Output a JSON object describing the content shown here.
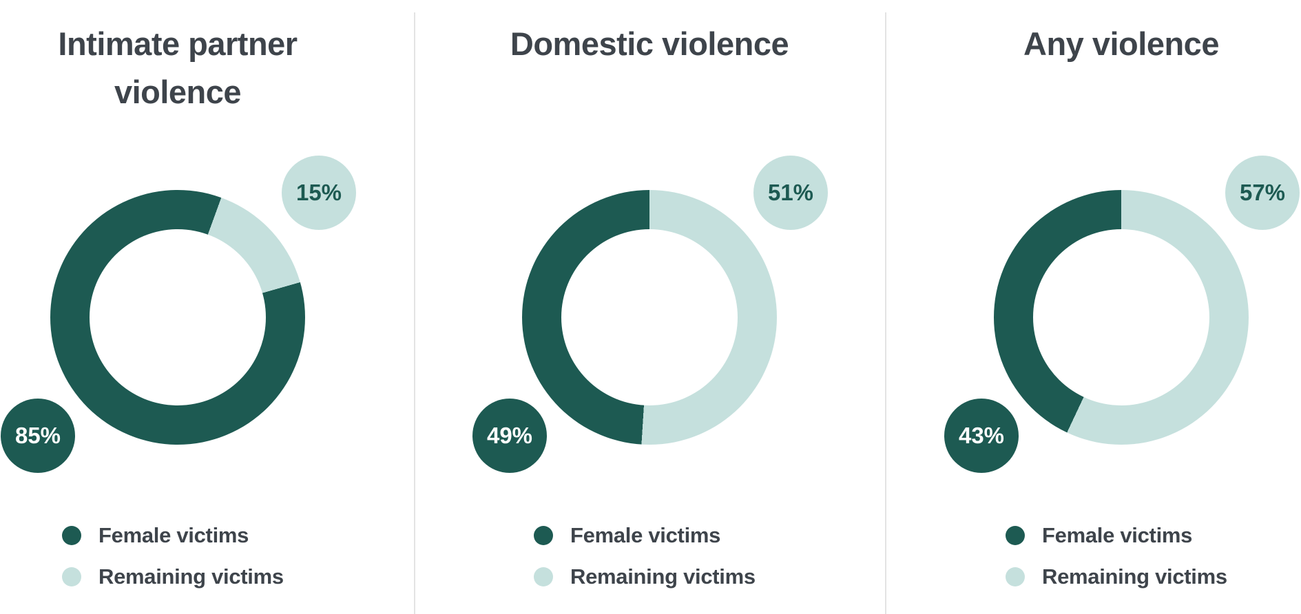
{
  "colors": {
    "dark_teal": "#1d5a52",
    "light_teal": "#c5e0dd",
    "text": "#3e444b",
    "divider": "#e3e3e3",
    "background": "#ffffff"
  },
  "legend": {
    "female_label": "Female victims",
    "remaining_label": "Remaining victims"
  },
  "charts": [
    {
      "title": "Intimate partner violence",
      "female_value_label": "85%",
      "remaining_value_label": "15%"
    },
    {
      "title": "Domestic violence",
      "female_value_label": "49%",
      "remaining_value_label": "51%"
    },
    {
      "title": "Any violence",
      "female_value_label": "43%",
      "remaining_value_label": "57%"
    }
  ],
  "chart_data": [
    {
      "type": "pie",
      "subtype": "donut",
      "title": "Intimate partner violence",
      "labels": [
        "Female victims",
        "Remaining victims"
      ],
      "values": [
        85,
        15
      ],
      "unit": "%",
      "legend_position": "bottom-left"
    },
    {
      "type": "pie",
      "subtype": "donut",
      "title": "Domestic violence",
      "labels": [
        "Female victims",
        "Remaining victims"
      ],
      "values": [
        49,
        51
      ],
      "unit": "%",
      "legend_position": "bottom-left"
    },
    {
      "type": "pie",
      "subtype": "donut",
      "title": "Any violence",
      "labels": [
        "Female victims",
        "Remaining victims"
      ],
      "values": [
        43,
        57
      ],
      "unit": "%",
      "legend_position": "bottom-left"
    }
  ]
}
